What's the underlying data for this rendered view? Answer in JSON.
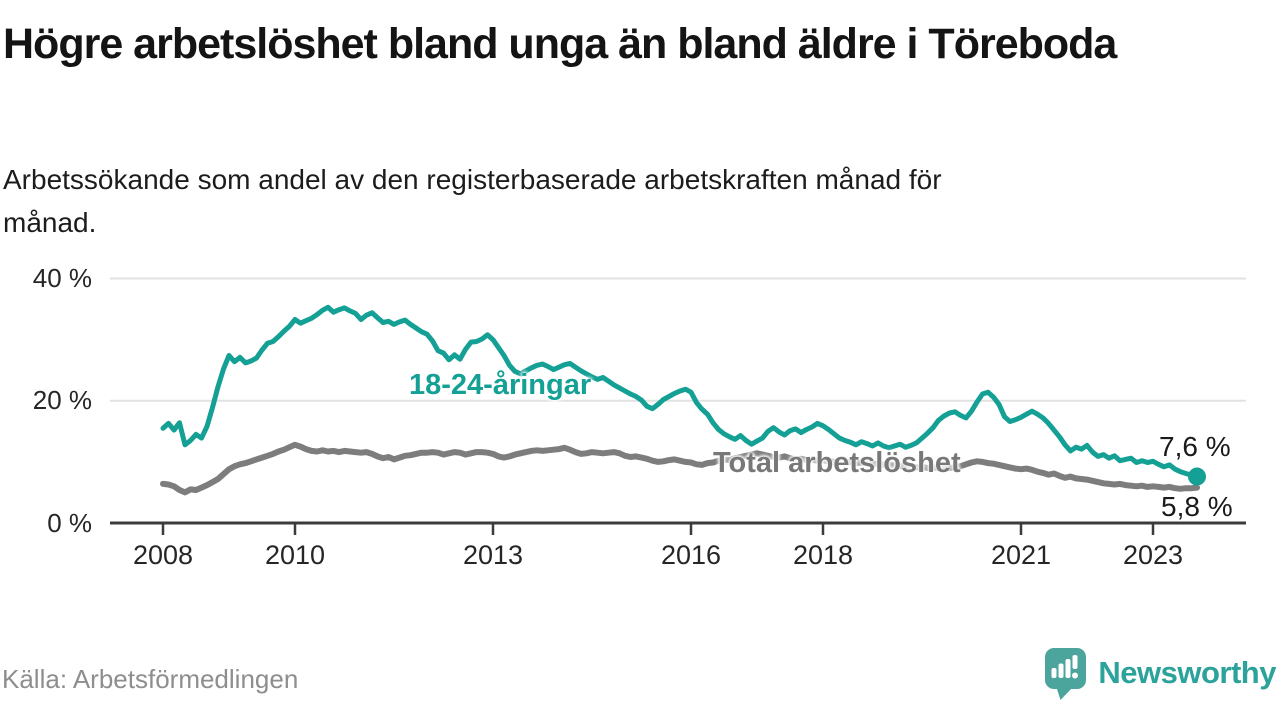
{
  "header": {
    "title": "Högre arbetslöshet bland unga än bland äldre i Töreboda",
    "subtitle": "Arbetssökande som andel av den registerbaserade arbetskraften månad för månad."
  },
  "footer": {
    "source": "Källa: Arbetsförmedlingen",
    "brand_name": "Newsworthy",
    "brand_icon": "bar-chart-speech-bubble-icon"
  },
  "colors": {
    "youth_line": "#14a095",
    "total_line": "#7d7d7d",
    "total_label": "#787878",
    "grid": "#e2e2e2",
    "axis": "#3b3b3b",
    "tick_text": "#262626",
    "end_label_text": "#1a1a1a",
    "brand_teal": "#2ba29a",
    "brand_icon_fill": "#4ba59c"
  },
  "chart_data": {
    "type": "line",
    "title": "Högre arbetslöshet bland unga än bland äldre i Töreboda",
    "subtitle": "Arbetssökande som andel av den registerbaserade arbetskraften månad för månad.",
    "frequency": "monthly",
    "x_start": "2008-01",
    "x_end": "2023-09",
    "grid": true,
    "y_axis": {
      "tick_values": [
        0,
        20,
        40
      ],
      "tick_labels": [
        "0 %",
        "20 %",
        "40 %"
      ],
      "range": [
        0,
        44
      ]
    },
    "x_axis": {
      "tick_years": [
        2008,
        2010,
        2013,
        2016,
        2018,
        2021,
        2023
      ]
    },
    "series": [
      {
        "name": "18-24-åringar",
        "color": "#14a095",
        "final_value": 7.6,
        "final_label": "7,6 %",
        "values": [
          15.5,
          16.3,
          15.2,
          16.4,
          12.8,
          13.5,
          14.5,
          13.9,
          15.8,
          18.9,
          22.3,
          25.2,
          27.4,
          26.4,
          27.1,
          26.2,
          26.5,
          27.0,
          28.3,
          29.4,
          29.7,
          30.5,
          31.4,
          32.2,
          33.3,
          32.7,
          33.1,
          33.5,
          34.1,
          34.8,
          35.3,
          34.5,
          34.9,
          35.2,
          34.7,
          34.3,
          33.3,
          34.0,
          34.4,
          33.6,
          32.8,
          33.0,
          32.5,
          32.9,
          33.2,
          32.5,
          31.9,
          31.3,
          30.9,
          29.8,
          28.2,
          27.8,
          26.7,
          27.5,
          26.8,
          28.4,
          29.6,
          29.7,
          30.1,
          30.8,
          30.0,
          28.7,
          27.4,
          25.8,
          24.8,
          24.4,
          24.9,
          25.4,
          25.8,
          26.0,
          25.6,
          25.1,
          25.5,
          25.9,
          26.1,
          25.5,
          24.9,
          24.4,
          23.9,
          23.5,
          23.8,
          23.2,
          22.6,
          22.1,
          21.6,
          21.1,
          20.7,
          20.1,
          19.1,
          18.7,
          19.4,
          20.2,
          20.7,
          21.2,
          21.6,
          21.9,
          21.4,
          19.7,
          18.6,
          17.8,
          16.4,
          15.3,
          14.6,
          14.1,
          13.7,
          14.3,
          13.5,
          12.9,
          13.4,
          13.9,
          15.0,
          15.6,
          14.9,
          14.4,
          15.1,
          15.4,
          14.8,
          15.3,
          15.7,
          16.3,
          15.9,
          15.3,
          14.6,
          13.9,
          13.5,
          13.2,
          12.8,
          13.3,
          13.0,
          12.6,
          13.1,
          12.6,
          12.3,
          12.6,
          12.9,
          12.4,
          12.7,
          13.1,
          13.9,
          14.7,
          15.6,
          16.8,
          17.5,
          18.0,
          18.2,
          17.6,
          17.2,
          18.3,
          19.8,
          21.1,
          21.4,
          20.6,
          19.4,
          17.4,
          16.6,
          16.9,
          17.3,
          17.8,
          18.3,
          17.8,
          17.2,
          16.3,
          15.2,
          14.1,
          12.8,
          11.8,
          12.4,
          12.1,
          12.7,
          11.6,
          10.9,
          11.2,
          10.6,
          11.0,
          10.2,
          10.4,
          10.6,
          9.9,
          10.2,
          9.9,
          10.1,
          9.6,
          9.2,
          9.5,
          8.8,
          8.4,
          8.1,
          7.8,
          7.6
        ]
      },
      {
        "name": "Total arbetslöshet",
        "color": "#7d7d7d",
        "final_value": 5.8,
        "final_label": "5,8 %",
        "values": [
          6.4,
          6.3,
          6.0,
          5.4,
          5.0,
          5.5,
          5.4,
          5.8,
          6.2,
          6.7,
          7.2,
          8.0,
          8.8,
          9.3,
          9.6,
          9.8,
          10.1,
          10.4,
          10.7,
          11.0,
          11.3,
          11.7,
          12.0,
          12.4,
          12.8,
          12.5,
          12.1,
          11.8,
          11.7,
          11.9,
          11.7,
          11.8,
          11.6,
          11.8,
          11.7,
          11.6,
          11.5,
          11.6,
          11.3,
          10.9,
          10.6,
          10.8,
          10.4,
          10.7,
          11.0,
          11.1,
          11.3,
          11.5,
          11.5,
          11.6,
          11.5,
          11.2,
          11.4,
          11.6,
          11.5,
          11.2,
          11.4,
          11.6,
          11.6,
          11.5,
          11.3,
          10.9,
          10.7,
          10.9,
          11.2,
          11.4,
          11.6,
          11.8,
          11.9,
          11.8,
          11.9,
          12.0,
          12.1,
          12.3,
          12.0,
          11.6,
          11.3,
          11.4,
          11.6,
          11.5,
          11.4,
          11.5,
          11.6,
          11.4,
          11.0,
          10.8,
          10.9,
          10.7,
          10.5,
          10.2,
          10.0,
          10.1,
          10.3,
          10.4,
          10.2,
          10.0,
          9.9,
          9.6,
          9.5,
          9.8,
          9.9,
          10.2,
          10.4,
          10.3,
          10.6,
          10.8,
          11.0,
          11.2,
          11.4,
          11.2,
          11.0,
          10.8,
          10.7,
          10.9,
          10.6,
          10.4,
          10.5,
          10.3,
          10.4,
          10.2,
          10.3,
          10.1,
          10.0,
          10.1,
          9.9,
          10.0,
          9.8,
          9.9,
          9.7,
          9.6,
          9.7,
          9.5,
          9.6,
          9.4,
          9.3,
          9.4,
          9.2,
          9.1,
          9.2,
          9.0,
          9.1,
          9.0,
          8.9,
          9.0,
          9.1,
          9.3,
          9.6,
          9.9,
          10.1,
          10.0,
          9.8,
          9.7,
          9.5,
          9.3,
          9.1,
          8.9,
          8.8,
          8.9,
          8.7,
          8.4,
          8.2,
          7.9,
          8.1,
          7.7,
          7.4,
          7.6,
          7.3,
          7.2,
          7.1,
          6.9,
          6.7,
          6.5,
          6.4,
          6.3,
          6.4,
          6.2,
          6.1,
          6.0,
          6.1,
          5.9,
          6.0,
          5.9,
          5.8,
          5.9,
          5.7,
          5.6,
          5.7,
          5.7,
          5.8
        ]
      }
    ]
  }
}
